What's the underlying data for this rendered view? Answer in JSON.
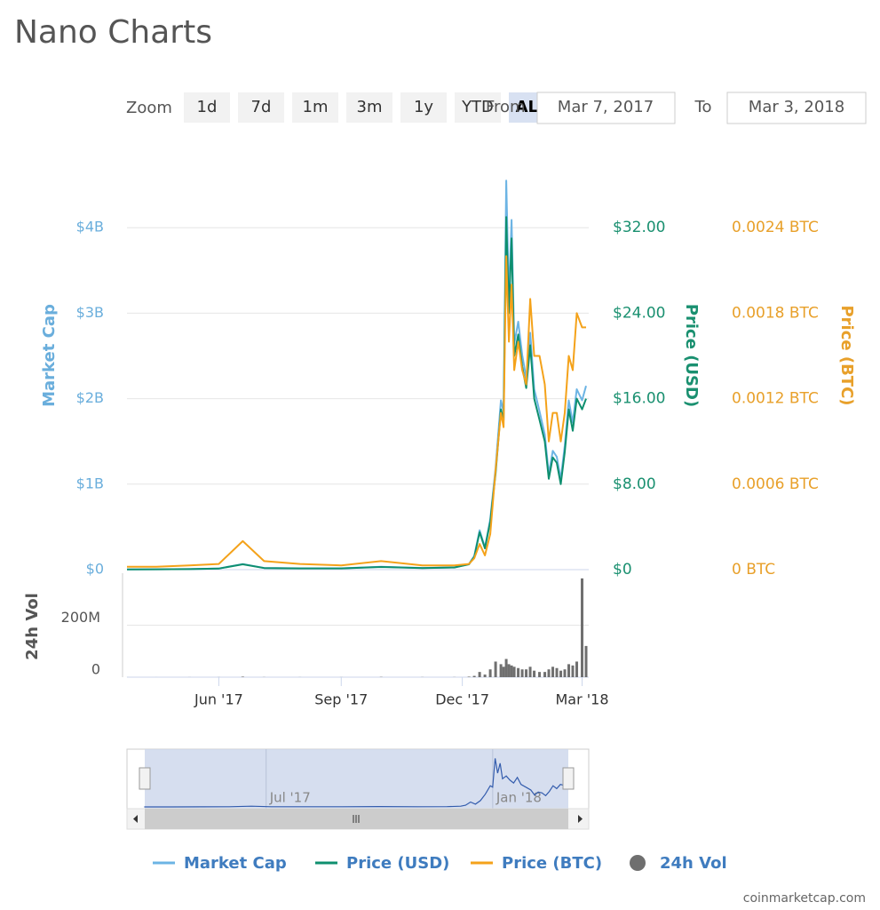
{
  "title": "Nano Charts",
  "zoom": {
    "label": "Zoom",
    "buttons": [
      "1d",
      "7d",
      "1m",
      "3m",
      "1y",
      "YTD",
      "ALL"
    ],
    "active": 6
  },
  "range": {
    "from_label": "From",
    "from": "Mar 7, 2017",
    "to_label": "To",
    "to": "Mar 3, 2018"
  },
  "chart_data": {
    "type": "line",
    "x": [
      "2017-03-24",
      "2017-04-15",
      "2017-05-10",
      "2017-06-01",
      "2017-06-19",
      "2017-07-05",
      "2017-08-01",
      "2017-09-01",
      "2017-10-01",
      "2017-11-01",
      "2017-11-25",
      "2017-12-06",
      "2017-12-10",
      "2017-12-14",
      "2017-12-18",
      "2017-12-22",
      "2017-12-26",
      "2017-12-30",
      "2018-01-01",
      "2018-01-03",
      "2018-01-05",
      "2018-01-07",
      "2018-01-09",
      "2018-01-12",
      "2018-01-15",
      "2018-01-18",
      "2018-01-21",
      "2018-01-24",
      "2018-01-28",
      "2018-02-01",
      "2018-02-04",
      "2018-02-07",
      "2018-02-10",
      "2018-02-13",
      "2018-02-16",
      "2018-02-19",
      "2018-02-22",
      "2018-02-25",
      "2018-03-01",
      "2018-03-04"
    ],
    "xlim": [
      "2017-03-24",
      "2018-03-06"
    ],
    "xticks": [
      {
        "value": "2017-06-01",
        "label": "Jun '17"
      },
      {
        "value": "2017-09-01",
        "label": "Sep '17"
      },
      {
        "value": "2017-12-01",
        "label": "Dec '17"
      },
      {
        "value": "2018-03-01",
        "label": "Mar '18"
      }
    ],
    "series": [
      {
        "name": "Market Cap",
        "color": "#6cb4e4",
        "axis": "y",
        "values": [
          2600000,
          4000000,
          6600000,
          13000000,
          66000000,
          20000000,
          16000000,
          16000000,
          33000000,
          20000000,
          26000000,
          66000000,
          160000000,
          460000000,
          260000000,
          590000000,
          1190000000,
          1980000000,
          1850000000,
          4550000000,
          3170000000,
          4090000000,
          2640000000,
          2900000000,
          2510000000,
          2240000000,
          2770000000,
          2110000000,
          1850000000,
          1580000000,
          1120000000,
          1390000000,
          1320000000,
          1060000000,
          1450000000,
          1980000000,
          1720000000,
          2110000000,
          1980000000,
          2150000000
        ]
      },
      {
        "name": "Price (USD)",
        "color": "#0e8f6f",
        "axis": "y2",
        "values": [
          0.02,
          0.03,
          0.05,
          0.1,
          0.5,
          0.15,
          0.12,
          0.12,
          0.25,
          0.15,
          0.2,
          0.5,
          1.2,
          3.5,
          2.0,
          4.5,
          9.0,
          15.0,
          14.0,
          33.0,
          24.0,
          31.0,
          20.0,
          22.0,
          19.0,
          17.0,
          21.0,
          16.0,
          14.0,
          12.0,
          8.5,
          10.5,
          10.0,
          8.0,
          11.0,
          15.0,
          13.0,
          16.0,
          15.0,
          16.0
        ]
      },
      {
        "name": "Price (BTC)",
        "color": "#f4a21a",
        "axis": "y3",
        "values": [
          2e-05,
          2e-05,
          3e-05,
          4e-05,
          0.0002,
          6e-05,
          4e-05,
          3e-05,
          6e-05,
          3e-05,
          3e-05,
          4e-05,
          8e-05,
          0.00018,
          0.0001,
          0.00025,
          0.0007,
          0.0011,
          0.001,
          0.0022,
          0.0016,
          0.002,
          0.0014,
          0.0016,
          0.0014,
          0.0013,
          0.0019,
          0.0015,
          0.0015,
          0.0013,
          0.0009,
          0.0011,
          0.0011,
          0.0009,
          0.0011,
          0.0015,
          0.0014,
          0.0018,
          0.0017,
          0.0017
        ]
      },
      {
        "name": "24h Vol",
        "color": "#6f6f6f",
        "axis": "y4",
        "type": "bar",
        "values": [
          100000,
          100000,
          200000,
          300000,
          2000000,
          500000,
          300000,
          300000,
          1000000,
          500000,
          500000,
          2000000,
          5000000,
          20000000,
          10000000,
          30000000,
          60000000,
          50000000,
          40000000,
          70000000,
          50000000,
          45000000,
          40000000,
          35000000,
          30000000,
          30000000,
          40000000,
          25000000,
          20000000,
          20000000,
          30000000,
          40000000,
          35000000,
          25000000,
          30000000,
          50000000,
          45000000,
          60000000,
          380000000,
          120000000
        ]
      }
    ],
    "ylabel": "Market Cap",
    "ylim": [
      0,
      5000000000
    ],
    "yticks": [
      {
        "value": 0,
        "label": "$0"
      },
      {
        "value": 1000000000,
        "label": "$1B"
      },
      {
        "value": 2000000000,
        "label": "$2B"
      },
      {
        "value": 3000000000,
        "label": "$3B"
      },
      {
        "value": 4000000000,
        "label": "$4B"
      }
    ],
    "y2label": "Price (USD)",
    "y2lim": [
      0,
      40
    ],
    "y2ticks": [
      {
        "value": 0,
        "label": "$0"
      },
      {
        "value": 8,
        "label": "$8.00"
      },
      {
        "value": 16,
        "label": "$16.00"
      },
      {
        "value": 24,
        "label": "$24.00"
      },
      {
        "value": 32,
        "label": "$32.00"
      }
    ],
    "y3label": "Price (BTC)",
    "y3lim": [
      0,
      0.003
    ],
    "y3ticks": [
      {
        "value": 0,
        "label": "0 BTC"
      },
      {
        "value": 0.0006,
        "label": "0.0006 BTC"
      },
      {
        "value": 0.0012,
        "label": "0.0012 BTC"
      },
      {
        "value": 0.0018,
        "label": "0.0018 BTC"
      },
      {
        "value": 0.0024,
        "label": "0.0024 BTC"
      }
    ],
    "y4label": "24h Vol",
    "y4lim": [
      0,
      400000000
    ],
    "y4ticks": [
      0,
      {
        "value": 200000000,
        "label": "200M"
      }
    ],
    "grid": true,
    "navigator": {
      "xlim": [
        "2017-03-10",
        "2018-03-20"
      ],
      "xticks": [
        {
          "value": "2017-07-01",
          "label": "Jul '17"
        },
        {
          "value": "2018-01-01",
          "label": "Jan '18"
        }
      ]
    }
  },
  "credit": "coinmarketcap.com"
}
